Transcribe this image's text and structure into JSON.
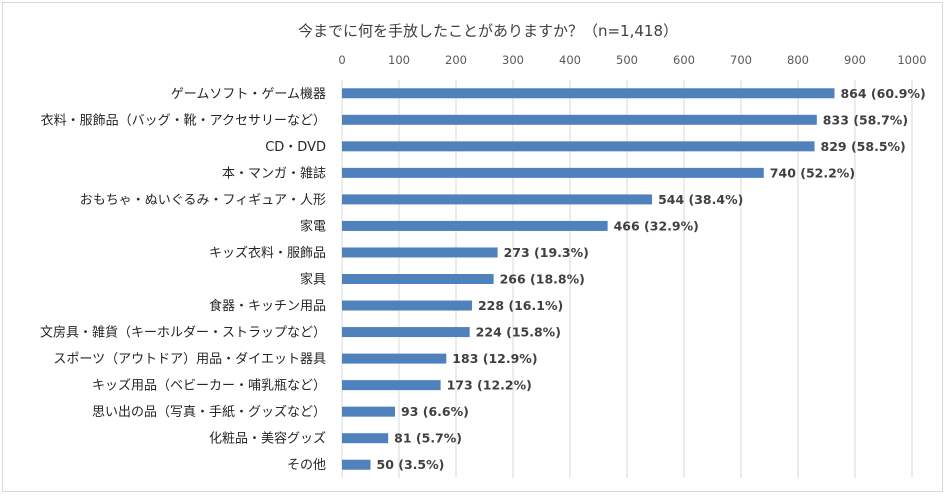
{
  "chart_data": {
    "type": "bar",
    "orientation": "horizontal",
    "title": "今までに何を手放したことがありますか？（n=1,418）",
    "xlim": [
      0,
      1000
    ],
    "ticks": [
      "0",
      "100",
      "200",
      "300",
      "400",
      "500",
      "600",
      "700",
      "800",
      "900",
      "1000"
    ],
    "tick_values": [
      0,
      100,
      200,
      300,
      400,
      500,
      600,
      700,
      800,
      900,
      1000
    ],
    "grid": true,
    "bar_color": "#4f81bd",
    "categories": [
      "ゲームソフト・ゲーム機器",
      "衣料・服飾品（バッグ・靴・アクセサリーなど）",
      "CD・DVD",
      "本・マンガ・雑誌",
      "おもちゃ・ぬいぐるみ・フィギュア・人形",
      "家電",
      "キッズ衣料・服飾品",
      "家具",
      "食器・キッチン用品",
      "文房具・雑貨（キーホルダー・ストラップなど）",
      "スポーツ（アウトドア）用品・ダイエット器具",
      "キッズ用品（ベビーカー・哺乳瓶など）",
      "思い出の品（写真・手紙・グッズなど）",
      "化粧品・美容グッズ",
      "その他"
    ],
    "values": [
      864,
      833,
      829,
      740,
      544,
      466,
      273,
      266,
      228,
      224,
      183,
      173,
      93,
      81,
      50
    ],
    "data_labels": [
      "864 (60.9%)",
      "833 (58.7%)",
      "829 (58.5%)",
      "740 (52.2%)",
      "544 (38.4%)",
      "466 (32.9%)",
      "273 (19.3%)",
      "266 (18.8%)",
      "228 (16.1%)",
      "224 (15.8%)",
      "183 (12.9%)",
      "173 (12.2%)",
      "93 (6.6%)",
      "81 (5.7%)",
      "50 (3.5%)"
    ]
  }
}
